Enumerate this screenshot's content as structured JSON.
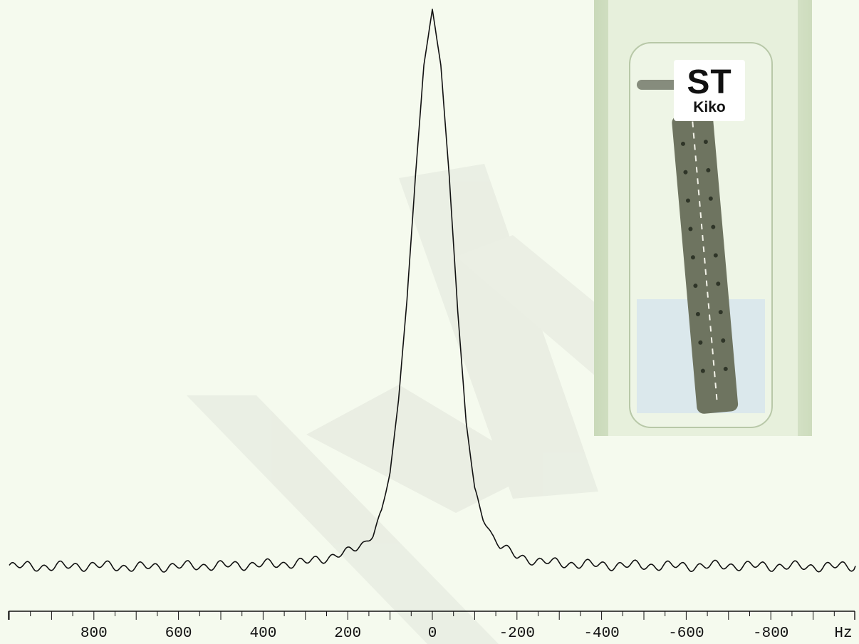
{
  "chart_data": {
    "type": "line",
    "title": "",
    "xlabel": "Hz",
    "ylabel": "",
    "xlim": [
      1000,
      -1000
    ],
    "ylim": [
      0,
      1.0
    ],
    "x_ticks": [
      800,
      600,
      400,
      200,
      0,
      -200,
      -400,
      -600,
      -800
    ],
    "x_tick_labels": [
      "800",
      "600",
      "400",
      "200",
      "0",
      "-200",
      "-400",
      "-600",
      "-800"
    ],
    "x_axis_reversed": true,
    "grid": false,
    "legend": "none",
    "series": [
      {
        "line_color": "#111111",
        "x": [
          1000,
          900,
          800,
          700,
          600,
          500,
          400,
          350,
          300,
          250,
          200,
          180,
          160,
          140,
          120,
          100,
          80,
          60,
          40,
          20,
          0,
          -20,
          -40,
          -60,
          -80,
          -100,
          -120,
          -140,
          -160,
          -180,
          -200,
          -250,
          -300,
          -400,
          -500,
          -600,
          -700,
          -800,
          -900,
          -1000
        ],
        "y": [
          0.003,
          0.002,
          0.004,
          0.001,
          0.003,
          0.004,
          0.006,
          0.007,
          0.01,
          0.018,
          0.028,
          0.035,
          0.045,
          0.062,
          0.1,
          0.17,
          0.3,
          0.48,
          0.7,
          0.9,
          1.0,
          0.9,
          0.7,
          0.46,
          0.26,
          0.14,
          0.09,
          0.06,
          0.04,
          0.03,
          0.02,
          0.012,
          0.008,
          0.005,
          0.004,
          0.003,
          0.004,
          0.003,
          0.002,
          0.003
        ]
      }
    ]
  },
  "inset_photo": {
    "label_line1": "ST",
    "label_line2": "Kiko"
  },
  "colors": {
    "background": "#f5faee",
    "line": "#111111",
    "watermark": "#e8ecdf"
  }
}
